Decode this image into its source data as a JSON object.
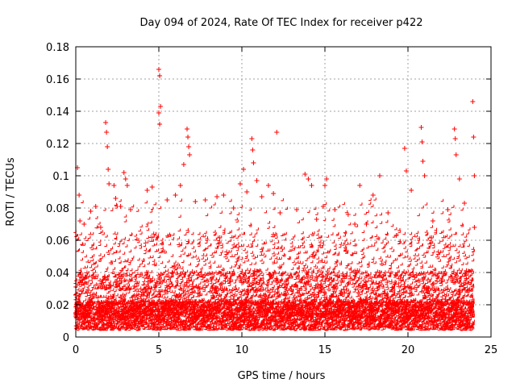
{
  "chart_data": {
    "type": "scatter",
    "title": "Day 094 of 2024, Rate Of TEC Index for receiver p422",
    "xlabel": "GPS time / hours",
    "ylabel": "ROTI / TECUs",
    "xlim": [
      0,
      25
    ],
    "ylim": [
      0,
      0.18
    ],
    "xticks": [
      "0",
      "5",
      "10",
      "15",
      "20",
      "25"
    ],
    "yticks": [
      "0",
      "0.02",
      "0.04",
      "0.06",
      "0.08",
      "0.1",
      "0.12",
      "0.14",
      "0.16",
      "0.18"
    ],
    "xtick_values": [
      0,
      5,
      10,
      15,
      20,
      25
    ],
    "ytick_values": [
      0,
      0.02,
      0.04,
      0.06,
      0.08,
      0.1,
      0.12,
      0.14,
      0.16,
      0.18
    ],
    "grid": true,
    "legend": "none",
    "marker": "plus",
    "color": "#ff0000",
    "x_data_range": [
      0,
      24
    ],
    "series": [
      {
        "points": [
          [
            0.1,
            0.105
          ],
          [
            0.2,
            0.088
          ],
          [
            0.25,
            0.072
          ],
          [
            0.5,
            0.07
          ],
          [
            0.9,
            0.078
          ],
          [
            1.2,
            0.081
          ],
          [
            1.5,
            0.068
          ],
          [
            1.8,
            0.133
          ],
          [
            1.85,
            0.127
          ],
          [
            1.9,
            0.118
          ],
          [
            1.95,
            0.104
          ],
          [
            2.0,
            0.095
          ],
          [
            2.3,
            0.094
          ],
          [
            2.4,
            0.086
          ],
          [
            2.7,
            0.081
          ],
          [
            2.9,
            0.102
          ],
          [
            3.0,
            0.098
          ],
          [
            3.1,
            0.094
          ],
          [
            3.3,
            0.079
          ],
          [
            4.3,
            0.091
          ],
          [
            4.6,
            0.093
          ],
          [
            5.0,
            0.166
          ],
          [
            5.05,
            0.162
          ],
          [
            5.1,
            0.143
          ],
          [
            5.0,
            0.139
          ],
          [
            5.05,
            0.132
          ],
          [
            5.5,
            0.085
          ],
          [
            6.0,
            0.088
          ],
          [
            6.3,
            0.094
          ],
          [
            6.5,
            0.107
          ],
          [
            6.7,
            0.129
          ],
          [
            6.75,
            0.124
          ],
          [
            6.8,
            0.118
          ],
          [
            6.85,
            0.113
          ],
          [
            7.2,
            0.084
          ],
          [
            7.8,
            0.085
          ],
          [
            8.5,
            0.087
          ],
          [
            8.9,
            0.088
          ],
          [
            9.5,
            0.08
          ],
          [
            9.9,
            0.095
          ],
          [
            10.1,
            0.104
          ],
          [
            10.3,
            0.09
          ],
          [
            10.6,
            0.123
          ],
          [
            10.65,
            0.116
          ],
          [
            10.7,
            0.108
          ],
          [
            10.9,
            0.097
          ],
          [
            11.2,
            0.087
          ],
          [
            11.6,
            0.094
          ],
          [
            11.9,
            0.089
          ],
          [
            12.1,
            0.127
          ],
          [
            12.3,
            0.077
          ],
          [
            13.3,
            0.079
          ],
          [
            13.8,
            0.101
          ],
          [
            14.0,
            0.098
          ],
          [
            14.2,
            0.094
          ],
          [
            14.5,
            0.073
          ],
          [
            14.9,
            0.081
          ],
          [
            15.0,
            0.094
          ],
          [
            15.1,
            0.098
          ],
          [
            15.6,
            0.079
          ],
          [
            16.4,
            0.076
          ],
          [
            16.8,
            0.07
          ],
          [
            17.1,
            0.094
          ],
          [
            17.5,
            0.07
          ],
          [
            17.9,
            0.088
          ],
          [
            18.3,
            0.1
          ],
          [
            18.8,
            0.077
          ],
          [
            19.3,
            0.063
          ],
          [
            19.8,
            0.117
          ],
          [
            19.9,
            0.103
          ],
          [
            20.2,
            0.091
          ],
          [
            20.8,
            0.13
          ],
          [
            20.85,
            0.121
          ],
          [
            20.9,
            0.109
          ],
          [
            21.0,
            0.1
          ],
          [
            21.5,
            0.072
          ],
          [
            22.4,
            0.079
          ],
          [
            22.8,
            0.129
          ],
          [
            22.85,
            0.123
          ],
          [
            22.9,
            0.113
          ],
          [
            23.1,
            0.098
          ],
          [
            23.4,
            0.083
          ],
          [
            23.9,
            0.146
          ],
          [
            23.95,
            0.124
          ],
          [
            24.0,
            0.1
          ],
          [
            24.0,
            0.068
          ]
        ]
      }
    ]
  }
}
